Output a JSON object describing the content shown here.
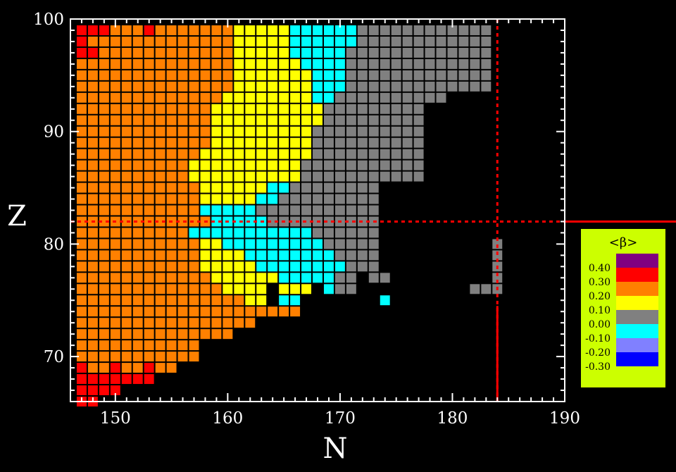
{
  "chart_data": {
    "type": "heatmap",
    "xlabel": "N",
    "ylabel": "Z",
    "xlim": [
      146,
      190
    ],
    "ylim": [
      66,
      100
    ],
    "x_ticks": [
      "150",
      "160",
      "170",
      "180",
      "190"
    ],
    "y_ticks": [
      "70",
      "80",
      "90",
      "100"
    ],
    "magic_lines": {
      "Z": 82,
      "N": 184
    },
    "colorbar": {
      "title": "<β>",
      "labels": [
        "0.40",
        "0.30",
        "0.20",
        "0.10",
        "0.00",
        "-0.10",
        "-0.20",
        "-0.30"
      ],
      "bins": [
        {
          "min": 0.4,
          "max": 0.5,
          "color": "#800080"
        },
        {
          "min": 0.3,
          "max": 0.4,
          "color": "#ff0000"
        },
        {
          "min": 0.2,
          "max": 0.3,
          "color": "#ff8000"
        },
        {
          "min": 0.1,
          "max": 0.2,
          "color": "#ffff00"
        },
        {
          "min": -0.1,
          "max": 0.1,
          "color": "#808080"
        },
        {
          "min": -0.2,
          "max": -0.1,
          "color": "#00ffff"
        },
        {
          "min": -0.3,
          "max": -0.2,
          "color": "#8080ff"
        },
        {
          "min": -0.4,
          "max": -0.3,
          "color": "#0000ff"
        }
      ],
      "background": "#ccff00"
    },
    "rows": [
      {
        "Z": 99,
        "Nmin": 147,
        "segments": [
          [
            "R",
            3
          ],
          [
            "O",
            3
          ],
          [
            "R",
            1
          ],
          [
            "O",
            7
          ],
          [
            "Y",
            5
          ],
          [
            "C",
            6
          ],
          [
            "G",
            12
          ]
        ]
      },
      {
        "Z": 98,
        "Nmin": 147,
        "segments": [
          [
            "R",
            1
          ],
          [
            "O",
            13
          ],
          [
            "Y",
            5
          ],
          [
            "C",
            6
          ],
          [
            "G",
            12
          ]
        ]
      },
      {
        "Z": 97,
        "Nmin": 147,
        "segments": [
          [
            "R",
            2
          ],
          [
            "O",
            12
          ],
          [
            "Y",
            5
          ],
          [
            "C",
            5
          ],
          [
            "G",
            13
          ]
        ]
      },
      {
        "Z": 96,
        "Nmin": 147,
        "segments": [
          [
            "O",
            14
          ],
          [
            "Y",
            6
          ],
          [
            "C",
            4
          ],
          [
            "G",
            13
          ]
        ]
      },
      {
        "Z": 95,
        "Nmin": 147,
        "segments": [
          [
            "O",
            14
          ],
          [
            "Y",
            7
          ],
          [
            "C",
            3
          ],
          [
            "G",
            13
          ]
        ]
      },
      {
        "Z": 94,
        "Nmin": 147,
        "segments": [
          [
            "O",
            14
          ],
          [
            "Y",
            7
          ],
          [
            "C",
            3
          ],
          [
            "G",
            13
          ]
        ]
      },
      {
        "Z": 93,
        "Nmin": 147,
        "segments": [
          [
            "O",
            13
          ],
          [
            "Y",
            8
          ],
          [
            "C",
            2
          ],
          [
            "G",
            10
          ]
        ]
      },
      {
        "Z": 92,
        "Nmin": 147,
        "segments": [
          [
            "O",
            12
          ],
          [
            "Y",
            10
          ],
          [
            "G",
            9
          ]
        ]
      },
      {
        "Z": 91,
        "Nmin": 147,
        "segments": [
          [
            "O",
            12
          ],
          [
            "Y",
            10
          ],
          [
            "G",
            9
          ]
        ]
      },
      {
        "Z": 90,
        "Nmin": 147,
        "segments": [
          [
            "O",
            12
          ],
          [
            "Y",
            9
          ],
          [
            "G",
            10
          ]
        ]
      },
      {
        "Z": 89,
        "Nmin": 147,
        "segments": [
          [
            "O",
            12
          ],
          [
            "Y",
            9
          ],
          [
            "G",
            10
          ]
        ]
      },
      {
        "Z": 88,
        "Nmin": 147,
        "segments": [
          [
            "O",
            11
          ],
          [
            "Y",
            10
          ],
          [
            "G",
            10
          ]
        ]
      },
      {
        "Z": 87,
        "Nmin": 147,
        "segments": [
          [
            "O",
            10
          ],
          [
            "Y",
            10
          ],
          [
            "G",
            11
          ]
        ]
      },
      {
        "Z": 86,
        "Nmin": 147,
        "segments": [
          [
            "O",
            10
          ],
          [
            "Y",
            10
          ],
          [
            "G",
            11
          ]
        ]
      },
      {
        "Z": 85,
        "Nmin": 147,
        "segments": [
          [
            "O",
            11
          ],
          [
            "Y",
            6
          ],
          [
            "C",
            2
          ],
          [
            "G",
            8
          ]
        ]
      },
      {
        "Z": 84,
        "Nmin": 147,
        "segments": [
          [
            "O",
            11
          ],
          [
            "Y",
            5
          ],
          [
            "C",
            2
          ],
          [
            "G",
            9
          ]
        ]
      },
      {
        "Z": 83,
        "Nmin": 147,
        "segments": [
          [
            "O",
            11
          ],
          [
            "C",
            5
          ],
          [
            "G",
            11
          ]
        ]
      },
      {
        "Z": 82,
        "Nmin": 147,
        "segments": [
          [
            "O",
            12
          ],
          [
            "C",
            5
          ],
          [
            "G",
            10
          ]
        ]
      },
      {
        "Z": 81,
        "Nmin": 147,
        "segments": [
          [
            "O",
            10
          ],
          [
            "C",
            11
          ],
          [
            "G",
            6
          ]
        ]
      },
      {
        "Z": 80,
        "Nmin": 147,
        "segments": [
          [
            "O",
            11
          ],
          [
            "Y",
            2
          ],
          [
            "C",
            9
          ],
          [
            "G",
            5
          ]
        ]
      },
      {
        "Z": 79,
        "Nmin": 147,
        "segments": [
          [
            "O",
            11
          ],
          [
            "Y",
            4
          ],
          [
            "C",
            8
          ],
          [
            "G",
            4
          ]
        ]
      },
      {
        "Z": 78,
        "Nmin": 147,
        "segments": [
          [
            "O",
            11
          ],
          [
            "Y",
            5
          ],
          [
            "C",
            8
          ],
          [
            "G",
            3
          ]
        ]
      },
      {
        "Z": 77,
        "Nmin": 147,
        "segments": [
          [
            "O",
            12
          ],
          [
            "Y",
            6
          ],
          [
            "C",
            5
          ],
          [
            "G",
            2
          ],
          [
            "_",
            1
          ],
          [
            "G",
            2
          ]
        ]
      },
      {
        "Z": 76,
        "Nmin": 147,
        "segments": [
          [
            "O",
            13
          ],
          [
            "Y",
            4
          ],
          [
            "_",
            1
          ],
          [
            "Y",
            3
          ],
          [
            "_",
            1
          ],
          [
            "C",
            1
          ],
          [
            "G",
            2
          ]
        ]
      },
      {
        "Z": 75,
        "Nmin": 147,
        "segments": [
          [
            "O",
            15
          ],
          [
            "Y",
            2
          ],
          [
            "_",
            1
          ],
          [
            "C",
            2
          ]
        ]
      },
      {
        "Z": 74,
        "Nmin": 147,
        "segments": [
          [
            "O",
            20
          ]
        ]
      },
      {
        "Z": 73,
        "Nmin": 147,
        "segments": [
          [
            "O",
            16
          ]
        ]
      },
      {
        "Z": 72,
        "Nmin": 147,
        "segments": [
          [
            "O",
            14
          ]
        ]
      },
      {
        "Z": 71,
        "Nmin": 147,
        "segments": [
          [
            "O",
            11
          ]
        ]
      },
      {
        "Z": 70,
        "Nmin": 147,
        "segments": [
          [
            "O",
            11
          ]
        ]
      },
      {
        "Z": 69,
        "Nmin": 147,
        "segments": [
          [
            "R",
            1
          ],
          [
            "O",
            2
          ],
          [
            "R",
            1
          ],
          [
            "O",
            2
          ],
          [
            "R",
            1
          ],
          [
            "O",
            2
          ]
        ]
      },
      {
        "Z": 68,
        "Nmin": 147,
        "segments": [
          [
            "R",
            7
          ]
        ]
      },
      {
        "Z": 67,
        "Nmin": 147,
        "segments": [
          [
            "R",
            4
          ]
        ]
      },
      {
        "Z": 66,
        "Nmin": 147,
        "segments": [
          [
            "R",
            2
          ]
        ]
      }
    ],
    "extra_cells": [
      {
        "N": 174,
        "Z": 75,
        "c": "C"
      },
      {
        "N": 184,
        "Z": 80,
        "c": "G"
      },
      {
        "N": 184,
        "Z": 79,
        "c": "G"
      },
      {
        "N": 184,
        "Z": 78,
        "c": "G"
      },
      {
        "N": 184,
        "Z": 77,
        "c": "G"
      },
      {
        "N": 184,
        "Z": 76,
        "c": "G"
      },
      {
        "N": 183,
        "Z": 76,
        "c": "G"
      },
      {
        "N": 182,
        "Z": 76,
        "c": "G"
      }
    ],
    "color_codes": {
      "R": "#ff0000",
      "O": "#ff8000",
      "Y": "#ffff00",
      "G": "#808080",
      "C": "#00ffff"
    }
  }
}
